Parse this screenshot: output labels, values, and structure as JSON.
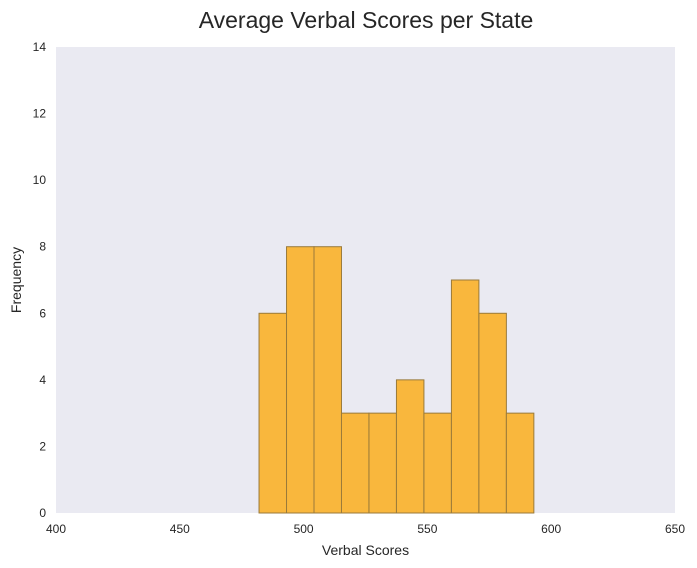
{
  "chart_data": {
    "type": "bar",
    "title": "Average Verbal Scores per State",
    "xlabel": "Verbal Scores",
    "ylabel": "Frequency",
    "xlim": [
      400,
      650
    ],
    "ylim": [
      0,
      14
    ],
    "xticks": [
      "400",
      "450",
      "500",
      "550",
      "600",
      "650"
    ],
    "yticks": [
      "0",
      "2",
      "4",
      "6",
      "8",
      "10",
      "12",
      "14"
    ],
    "grid": false,
    "bins": [
      {
        "x0": 482,
        "x1": 493.1,
        "count": 6
      },
      {
        "x0": 493.1,
        "x1": 504.2,
        "count": 8
      },
      {
        "x0": 504.2,
        "x1": 515.3,
        "count": 8
      },
      {
        "x0": 515.3,
        "x1": 526.4,
        "count": 3
      },
      {
        "x0": 526.4,
        "x1": 537.5,
        "count": 3
      },
      {
        "x0": 537.5,
        "x1": 548.6,
        "count": 4
      },
      {
        "x0": 548.6,
        "x1": 559.7,
        "count": 3
      },
      {
        "x0": 559.7,
        "x1": 570.8,
        "count": 7
      },
      {
        "x0": 570.8,
        "x1": 581.9,
        "count": 6
      },
      {
        "x0": 581.9,
        "x1": 593,
        "count": 3
      }
    ],
    "colors": {
      "plot_background": "#EAEAF2",
      "bar_fill": "#F9B73D",
      "bar_edge": "#9A7A3A"
    }
  }
}
